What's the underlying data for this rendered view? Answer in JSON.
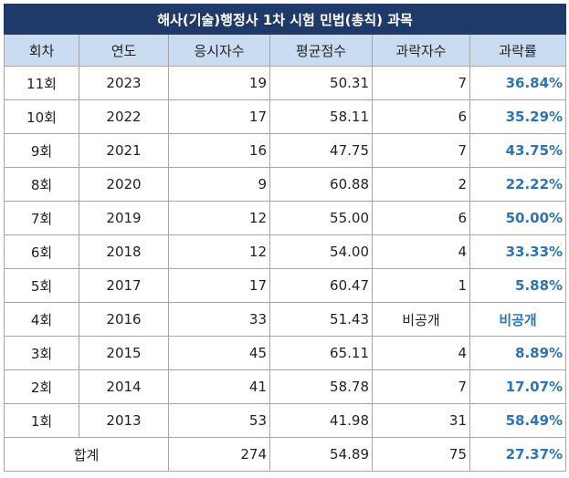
{
  "title": "해사(기술)행정사 1차 시험 민법(총칙) 과목",
  "headers": [
    "회차",
    "연도",
    "응시자수",
    "평균점수",
    "과락자수",
    "과락률"
  ],
  "rows": [
    {
      "round": "11회",
      "year": "2023",
      "applicants": "19",
      "avg": "50.31",
      "fail": "7",
      "rate": "36.84%"
    },
    {
      "round": "10회",
      "year": "2022",
      "applicants": "17",
      "avg": "58.11",
      "fail": "6",
      "rate": "35.29%"
    },
    {
      "round": "9회",
      "year": "2021",
      "applicants": "16",
      "avg": "47.75",
      "fail": "7",
      "rate": "43.75%"
    },
    {
      "round": "8회",
      "year": "2020",
      "applicants": "9",
      "avg": "60.88",
      "fail": "2",
      "rate": "22.22%"
    },
    {
      "round": "7회",
      "year": "2019",
      "applicants": "12",
      "avg": "55.00",
      "fail": "6",
      "rate": "50.00%"
    },
    {
      "round": "6회",
      "year": "2018",
      "applicants": "12",
      "avg": "54.00",
      "fail": "4",
      "rate": "33.33%"
    },
    {
      "round": "5회",
      "year": "2017",
      "applicants": "17",
      "avg": "60.47",
      "fail": "1",
      "rate": "5.88%"
    },
    {
      "round": "4회",
      "year": "2016",
      "applicants": "33",
      "avg": "51.43",
      "fail": "비공개",
      "rate": "비공개"
    },
    {
      "round": "3회",
      "year": "2015",
      "applicants": "45",
      "avg": "65.11",
      "fail": "4",
      "rate": "8.89%"
    },
    {
      "round": "2회",
      "year": "2014",
      "applicants": "41",
      "avg": "58.78",
      "fail": "7",
      "rate": "17.07%"
    },
    {
      "round": "1회",
      "year": "2013",
      "applicants": "53",
      "avg": "41.98",
      "fail": "31",
      "rate": "58.49%"
    }
  ],
  "total": {
    "label": "합계",
    "applicants": "274",
    "avg": "54.89",
    "fail": "75",
    "rate": "27.37%"
  },
  "colors": {
    "title_bg": "#1f3a68",
    "header_bg": "#c9dcf1",
    "rate_text": "#2e74b5",
    "border": "#a6a6a6"
  }
}
